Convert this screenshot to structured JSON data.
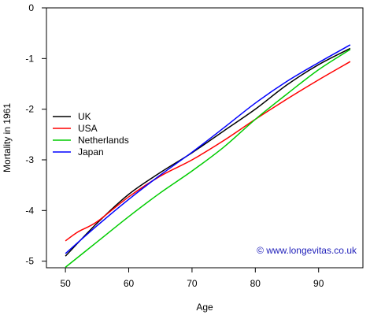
{
  "chart_data": {
    "type": "line",
    "xlabel": "Age",
    "ylabel": "Mortality in 1961",
    "xlim": [
      47,
      97
    ],
    "ylim": [
      -5.13,
      0.0
    ],
    "x_ticks": [
      50,
      60,
      70,
      80,
      90
    ],
    "y_ticks": [
      0,
      -1,
      -2,
      -3,
      -4,
      -5
    ],
    "x_tick_labels": [
      "50",
      "60",
      "70",
      "80",
      "90"
    ],
    "y_tick_labels": [
      "0",
      "-1",
      "-2",
      "-3",
      "-4",
      "-5"
    ],
    "legend_position": "left",
    "series": [
      {
        "name": "UK",
        "color": "#000000",
        "x": [
          50,
          55,
          60,
          65,
          70,
          75,
          80,
          85,
          90,
          95
        ],
        "y": [
          -4.9,
          -4.25,
          -3.68,
          -3.25,
          -2.86,
          -2.43,
          -2.0,
          -1.52,
          -1.12,
          -0.8
        ]
      },
      {
        "name": "USA",
        "color": "#ff0000",
        "x": [
          50,
          52,
          55,
          60,
          65,
          70,
          75,
          80,
          85,
          90,
          95
        ],
        "y": [
          -4.6,
          -4.42,
          -4.22,
          -3.73,
          -3.32,
          -3.0,
          -2.62,
          -2.2,
          -1.8,
          -1.42,
          -1.06
        ]
      },
      {
        "name": "Netherlands",
        "color": "#00cc00",
        "x": [
          50,
          55,
          60,
          65,
          70,
          75,
          80,
          85,
          90,
          95
        ],
        "y": [
          -5.12,
          -4.62,
          -4.12,
          -3.65,
          -3.22,
          -2.75,
          -2.2,
          -1.7,
          -1.22,
          -0.82
        ]
      },
      {
        "name": "Japan",
        "color": "#0000ff",
        "x": [
          50,
          55,
          60,
          65,
          70,
          75,
          80,
          85,
          90,
          95
        ],
        "y": [
          -4.85,
          -4.3,
          -3.78,
          -3.3,
          -2.85,
          -2.37,
          -1.88,
          -1.45,
          -1.08,
          -0.73
        ]
      }
    ],
    "annotation": "© www.longevitas.co.uk",
    "annotation_color": "#2222bb"
  }
}
